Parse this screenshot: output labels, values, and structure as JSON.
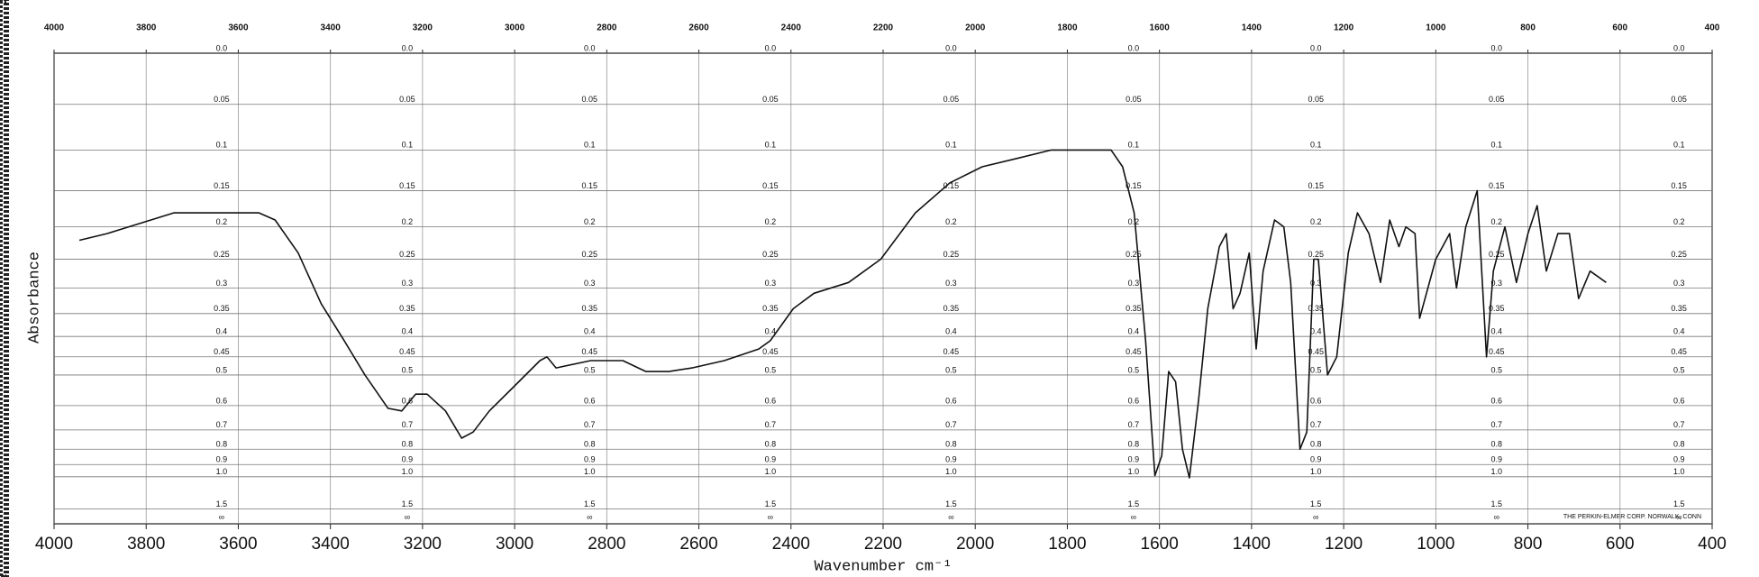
{
  "chart_data": {
    "type": "line",
    "xlabel": "Wavenumber cm⁻¹",
    "ylabel": "Absorbance",
    "annotation": "THE PERKIN-ELMER CORP. NORWALK, CONN",
    "xlim": [
      4000,
      400
    ],
    "xticks": [
      4000,
      3800,
      3600,
      3400,
      3200,
      3000,
      2800,
      2600,
      2400,
      2200,
      2000,
      1800,
      1600,
      1400,
      1200,
      1000,
      800,
      600,
      400
    ],
    "x2ticks": [
      4000,
      3800,
      3600,
      3400,
      3200,
      3000,
      2800,
      2600,
      2400,
      2200,
      2000,
      1800,
      1600,
      1400,
      1200,
      1000,
      800,
      600,
      400
    ],
    "yscale": "absorbance",
    "ylim": [
      0,
      null
    ],
    "yticks": [
      {
        "value": 0,
        "label": "0.0"
      },
      0.05,
      0.1,
      0.15,
      0.2,
      0.25,
      0.3,
      0.35,
      0.4,
      0.45,
      0.5,
      0.6,
      0.7,
      0.8,
      0.9,
      {
        "value": 1,
        "label": "1.0"
      },
      1.5,
      {
        "value": null,
        "label": "∞"
      }
    ],
    "grid": true,
    "color": "#111111",
    "x": [
      3945,
      3885,
      3740,
      3640,
      3555,
      3520,
      3470,
      3420,
      3370,
      3325,
      3275,
      3245,
      3215,
      3190,
      3150,
      3115,
      3090,
      3055,
      3005,
      2945,
      2930,
      2910,
      2835,
      2765,
      2715,
      2665,
      2615,
      2545,
      2470,
      2445,
      2395,
      2350,
      2275,
      2205,
      2130,
      2055,
      1985,
      1910,
      1835,
      1750,
      1705,
      1680,
      1655,
      1630,
      1610,
      1595,
      1580,
      1565,
      1550,
      1535,
      1515,
      1495,
      1470,
      1455,
      1440,
      1425,
      1405,
      1390,
      1375,
      1350,
      1330,
      1315,
      1295,
      1280,
      1265,
      1255,
      1235,
      1215,
      1190,
      1170,
      1145,
      1120,
      1100,
      1080,
      1065,
      1045,
      1035,
      1000,
      970,
      955,
      935,
      910,
      890,
      875,
      850,
      825,
      800,
      780,
      760,
      735,
      710,
      690,
      665,
      630
    ],
    "values": [
      0.22,
      0.21,
      0.18,
      0.18,
      0.18,
      0.19,
      0.24,
      0.33,
      0.41,
      0.5,
      0.61,
      0.62,
      0.56,
      0.56,
      0.62,
      0.74,
      0.71,
      0.62,
      0.54,
      0.46,
      0.45,
      0.48,
      0.46,
      0.46,
      0.49,
      0.49,
      0.48,
      0.46,
      0.43,
      0.41,
      0.34,
      0.31,
      0.29,
      0.25,
      0.18,
      0.14,
      0.12,
      0.11,
      0.1,
      0.1,
      0.1,
      0.12,
      0.18,
      0.41,
      0.99,
      0.84,
      0.49,
      0.52,
      0.8,
      1.01,
      0.58,
      0.34,
      0.23,
      0.21,
      0.34,
      0.31,
      0.24,
      0.43,
      0.27,
      0.19,
      0.2,
      0.29,
      0.8,
      0.71,
      0.25,
      0.25,
      0.5,
      0.45,
      0.24,
      0.18,
      0.21,
      0.29,
      0.19,
      0.23,
      0.2,
      0.21,
      0.36,
      0.25,
      0.21,
      0.3,
      0.2,
      0.15,
      0.45,
      0.27,
      0.2,
      0.29,
      0.21,
      0.17,
      0.27,
      0.21,
      0.21,
      0.32,
      0.27,
      0.29
    ]
  }
}
